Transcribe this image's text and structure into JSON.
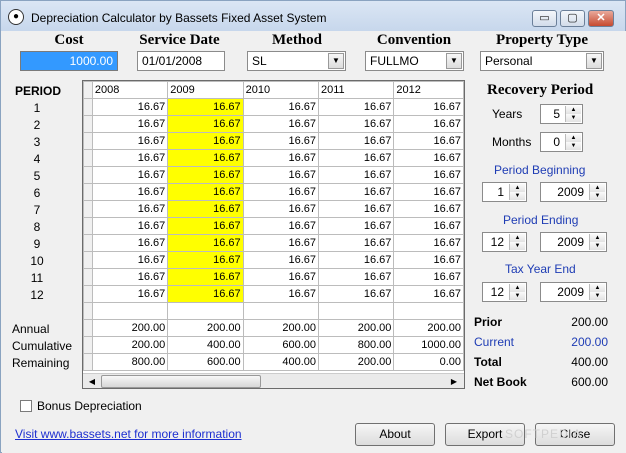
{
  "window": {
    "title": "Depreciation Calculator by Bassets Fixed Asset System",
    "min_glyph": "▭",
    "max_glyph": "▢",
    "close_glyph": "✕"
  },
  "inputs": {
    "cost_label": "Cost",
    "cost_value": "1000.00",
    "service_date_label": "Service Date",
    "service_date_value": "01/01/2008",
    "method_label": "Method",
    "method_value": "SL",
    "convention_label": "Convention",
    "convention_value": "FULLMO",
    "property_type_label": "Property Type",
    "property_type_value": "Personal"
  },
  "grid": {
    "period_header": "PERIOD",
    "years": [
      "2008",
      "2009",
      "2010",
      "2011",
      "2012"
    ],
    "highlight_column": 1,
    "highlight_color": "#ffff00",
    "periods": [
      "1",
      "2",
      "3",
      "4",
      "5",
      "6",
      "7",
      "8",
      "9",
      "10",
      "11",
      "12"
    ],
    "monthly_value": "16.67",
    "summary_labels": [
      "Annual",
      "Cumulative",
      "Remaining"
    ],
    "annual": [
      "200.00",
      "200.00",
      "200.00",
      "200.00",
      "200.00"
    ],
    "cumulative": [
      "200.00",
      "400.00",
      "600.00",
      "800.00",
      "1000.00"
    ],
    "remaining": [
      "800.00",
      "600.00",
      "400.00",
      "200.00",
      "0.00"
    ]
  },
  "recovery": {
    "title": "Recovery Period",
    "years_label": "Years",
    "years_value": "5",
    "months_label": "Months",
    "months_value": "0",
    "period_beginning_label": "Period Beginning",
    "period_beginning_month": "1",
    "period_beginning_year": "2009",
    "period_ending_label": "Period Ending",
    "period_ending_month": "12",
    "period_ending_year": "2009",
    "tax_year_end_label": "Tax Year End",
    "tax_year_end_month": "12",
    "tax_year_end_year": "2009"
  },
  "summary": {
    "prior_label": "Prior",
    "prior_value": "200.00",
    "current_label": "Current",
    "current_value": "200.00",
    "total_label": "Total",
    "total_value": "400.00",
    "net_book_label": "Net Book",
    "net_book_value": "600.00"
  },
  "footer": {
    "bonus_label": "Bonus Depreciation",
    "bonus_checked": false,
    "link_text": "Visit www.bassets.net for more information",
    "about_label": "About",
    "export_label": "Export",
    "close_label": "Close",
    "watermark": "SOFTPEDIA"
  },
  "colors": {
    "accent_blue": "#1e3cb4",
    "selection_blue": "#3399ff"
  }
}
